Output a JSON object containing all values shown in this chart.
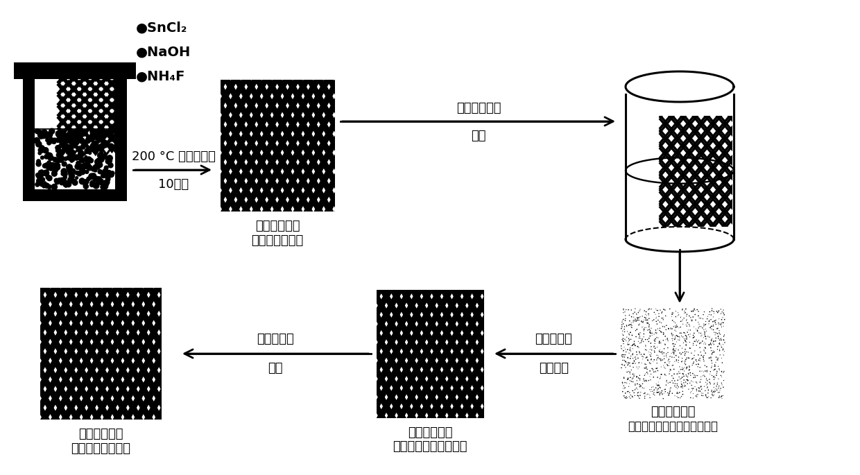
{
  "bg_color": "#ffffff",
  "text_color": "#000000",
  "chem1": "●SnCl₂",
  "chem2": "●NaOH",
  "chem3": "●NH₄F",
  "arrow1_label_line1": "200 °C 溶剂热反应",
  "arrow1_label_line2": "10小时",
  "arrow2_label_line1": "有机碳溶液中",
  "arrow2_label_line2": "浸泡",
  "arrow3_label_line1": "氪气气氛下",
  "arrow3_label_line2": "高温碳化",
  "arrow4_label_line1": "氪气气氛下",
  "arrow4_label_line2": "还原",
  "label_mesh1_line1": "不锈锢网负载",
  "label_mesh1_line2": "氧化锡纳米结构",
  "label_dotted_line1": "不锈锢网负载",
  "label_dotted_line2": "有机碳源包覆氧化锡纳米结构",
  "label_mesh2_line1": "不锈锢网负载",
  "label_mesh2_line2": "碳包覆氧化锡纳米结构",
  "label_mesh3_line1": "不锈锢网负载",
  "label_mesh3_line2": "碳包覆锡纳米结构",
  "font_size_label": 13,
  "font_size_chem": 14,
  "font_size_arrow": 13
}
